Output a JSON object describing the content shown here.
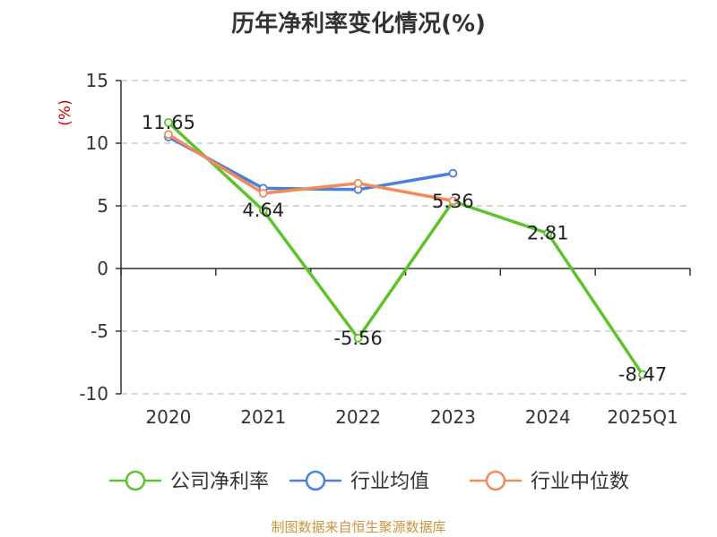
{
  "chart_data": {
    "type": "line",
    "title": "历年净利率变化情况(%)",
    "ylabel": "(%)",
    "categories": [
      "2020",
      "2021",
      "2022",
      "2023",
      "2024",
      "2025Q1"
    ],
    "ylim": [
      -10,
      15
    ],
    "yticks": [
      "15",
      "10",
      "5",
      "0",
      "-5",
      "-10"
    ],
    "grid": true,
    "legend_position": "bottom",
    "series": [
      {
        "name": "公司净利率",
        "color": "#5cc42a",
        "values": [
          11.65,
          4.64,
          -5.56,
          5.36,
          2.81,
          -8.47
        ],
        "labels": [
          "11.65",
          "4.64",
          "-5.56",
          "5.36",
          "2.81",
          "-8.47"
        ]
      },
      {
        "name": "行业均值",
        "color": "#4a7fdb",
        "values": [
          10.5,
          6.4,
          6.3,
          7.6,
          null,
          null
        ]
      },
      {
        "name": "行业中位数",
        "color": "#f08c5a",
        "values": [
          10.7,
          6.0,
          6.8,
          5.4,
          null,
          null
        ]
      }
    ]
  },
  "footer": "制图数据来自恒生聚源数据库"
}
